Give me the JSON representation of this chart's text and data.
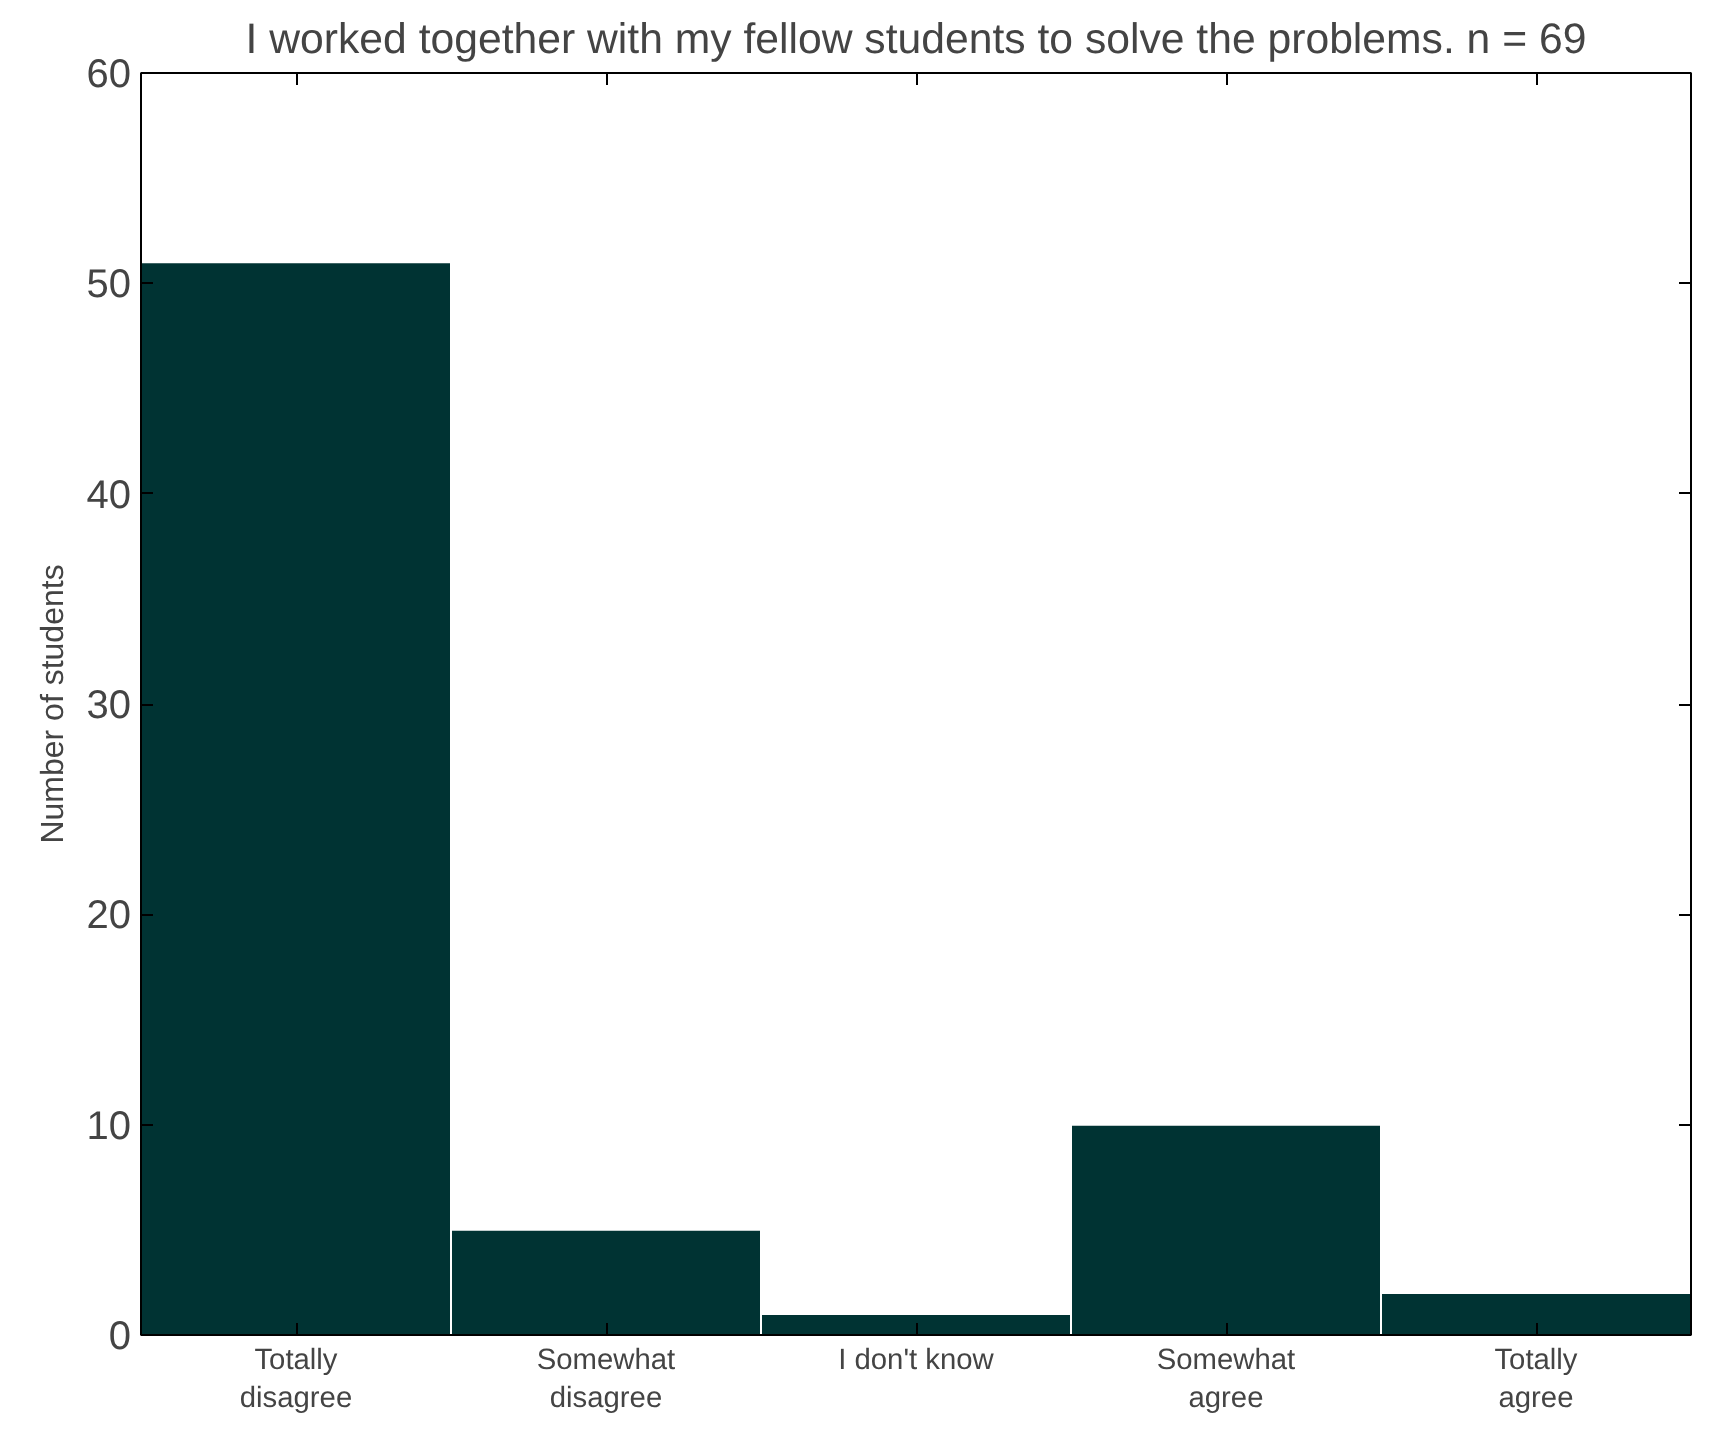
{
  "chart_data": {
    "type": "bar",
    "title": "I worked together with my fellow students to solve the problems. n = 69",
    "ylabel": "Number of students",
    "categories": [
      "Totally\ndisagree",
      "Somewhat\ndisagree",
      "I don't know",
      "Somewhat\nagree",
      "Totally\nagree"
    ],
    "values": [
      51,
      5,
      1,
      10,
      2
    ],
    "color": "#003333",
    "ylim": [
      0,
      60
    ],
    "yticks": [
      0,
      10,
      20,
      30,
      40,
      50,
      60
    ],
    "grid": false
  }
}
